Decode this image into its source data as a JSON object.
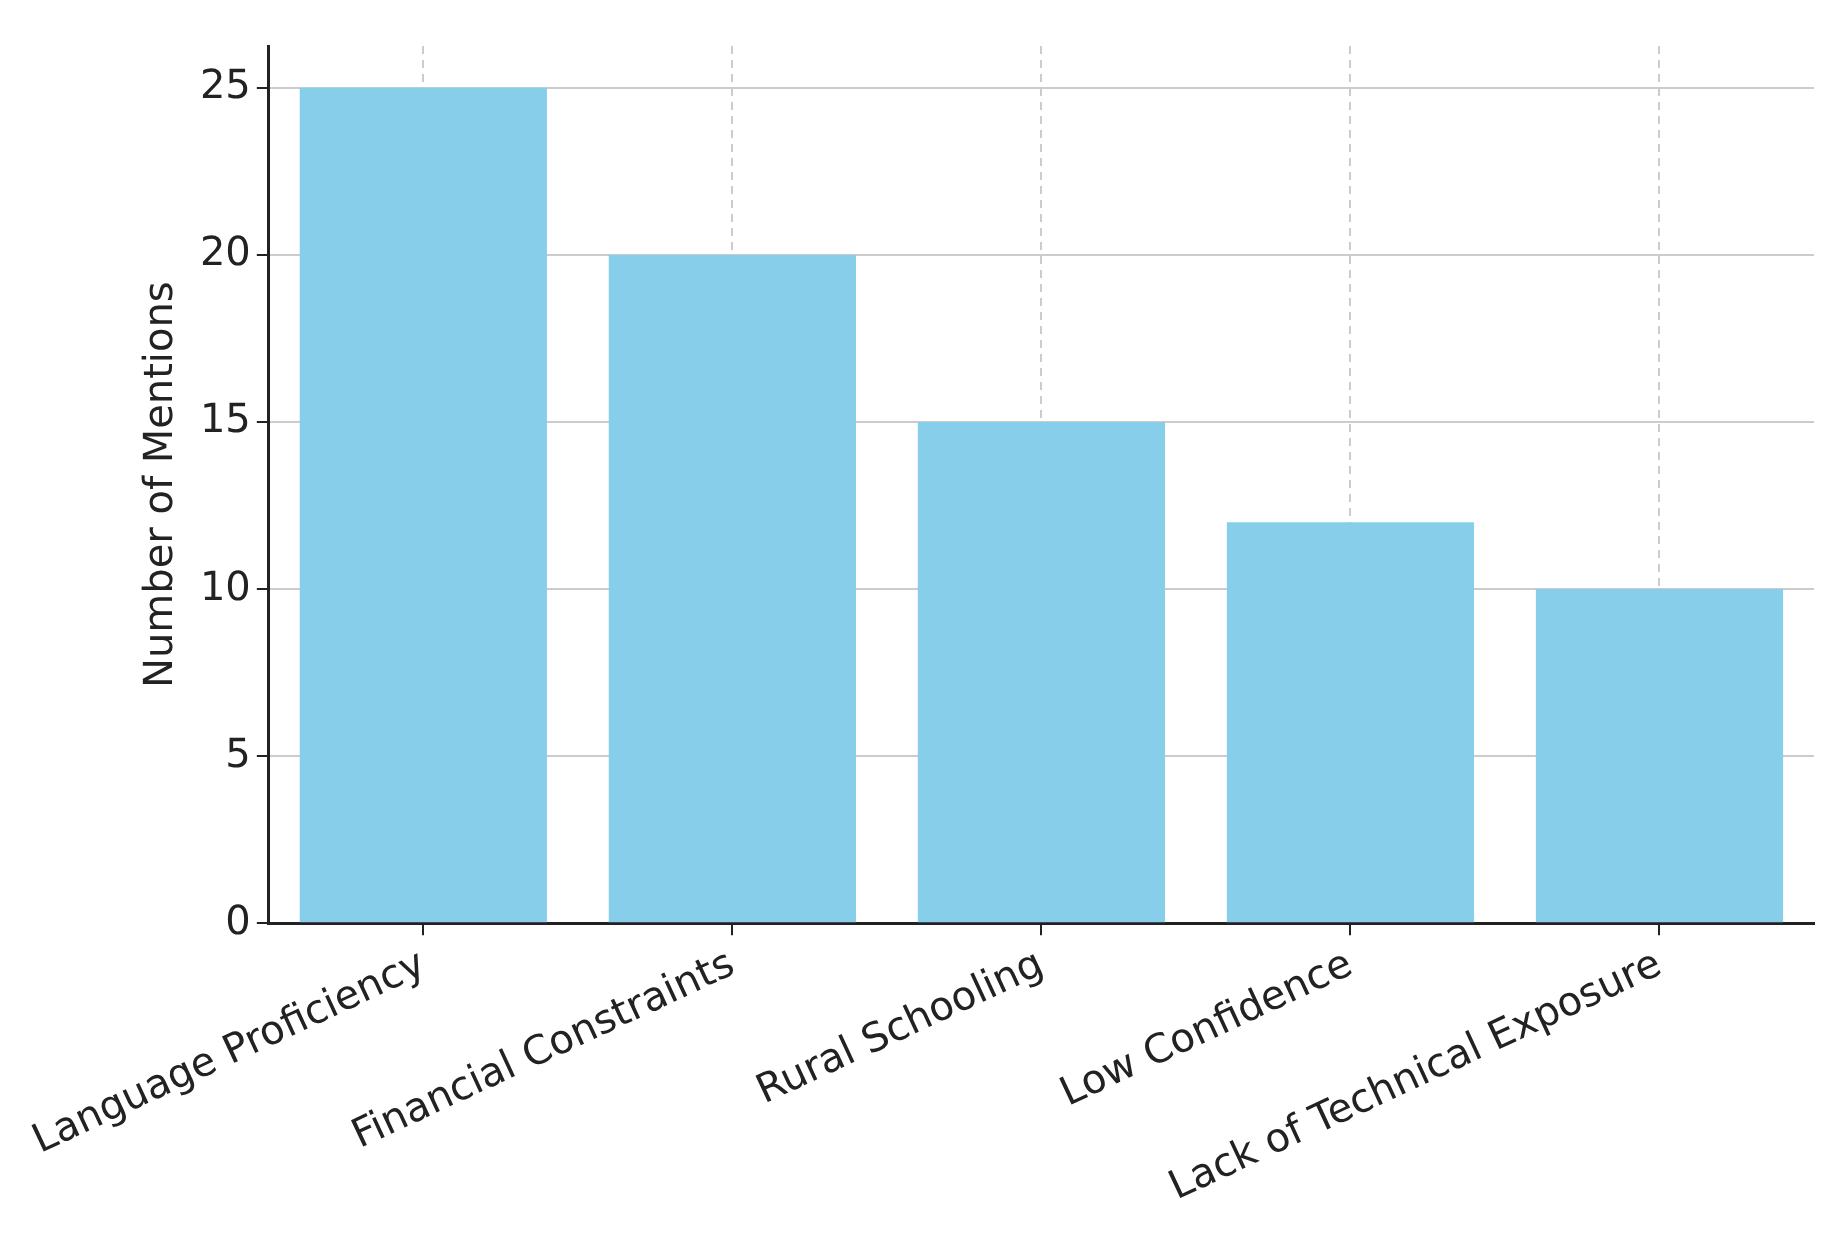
{
  "chart_data": {
    "type": "bar",
    "ylabel": "Number of Mentions",
    "categories": [
      "Language Proficiency",
      "Financial Constraints",
      "Rural Schooling",
      "Low Confidence",
      "Lack of Technical Exposure"
    ],
    "values": [
      25,
      20,
      15,
      12,
      10
    ],
    "color": "#87ceeb",
    "ylim": [
      0,
      26.25
    ],
    "yticks": [
      0,
      5,
      10,
      15,
      20,
      25
    ],
    "grid": true
  }
}
